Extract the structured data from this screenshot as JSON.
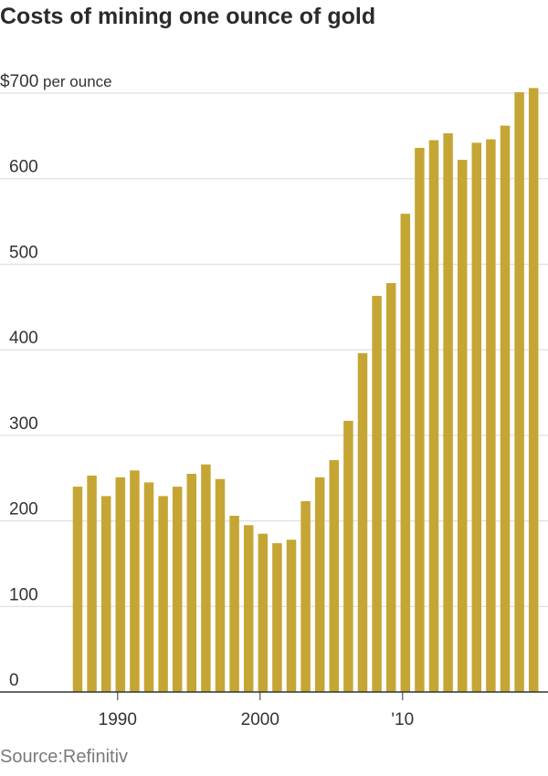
{
  "title": "Costs of mining one ounce of gold",
  "source": "Source:Refinitiv",
  "chart_data": {
    "type": "bar",
    "ylabel": "per ounce",
    "ytick_labels": [
      "0",
      "100",
      "200",
      "300",
      "400",
      "500",
      "600",
      "$700"
    ],
    "yticks": [
      0,
      100,
      200,
      300,
      400,
      500,
      600,
      700
    ],
    "ylim": [
      0,
      700
    ],
    "xtick_labels": [
      {
        "label": "1990",
        "year": 1990
      },
      {
        "label": "2000",
        "year": 2000
      },
      {
        "label": "'10",
        "year": 2010
      }
    ],
    "categories": [
      1987,
      1988,
      1989,
      1990,
      1991,
      1992,
      1993,
      1994,
      1995,
      1996,
      1997,
      1998,
      1999,
      2000,
      2001,
      2002,
      2003,
      2004,
      2005,
      2006,
      2007,
      2008,
      2009,
      2010,
      2011,
      2012,
      2013,
      2014,
      2015,
      2016,
      2017,
      2018,
      2019
    ],
    "values": [
      240,
      253,
      229,
      251,
      259,
      245,
      229,
      240,
      255,
      266,
      249,
      206,
      195,
      185,
      174,
      178,
      223,
      251,
      271,
      317,
      396,
      463,
      478,
      559,
      636,
      645,
      653,
      622,
      642,
      646,
      662,
      701,
      706
    ],
    "bar_color": "#c5a634",
    "grid": true
  }
}
